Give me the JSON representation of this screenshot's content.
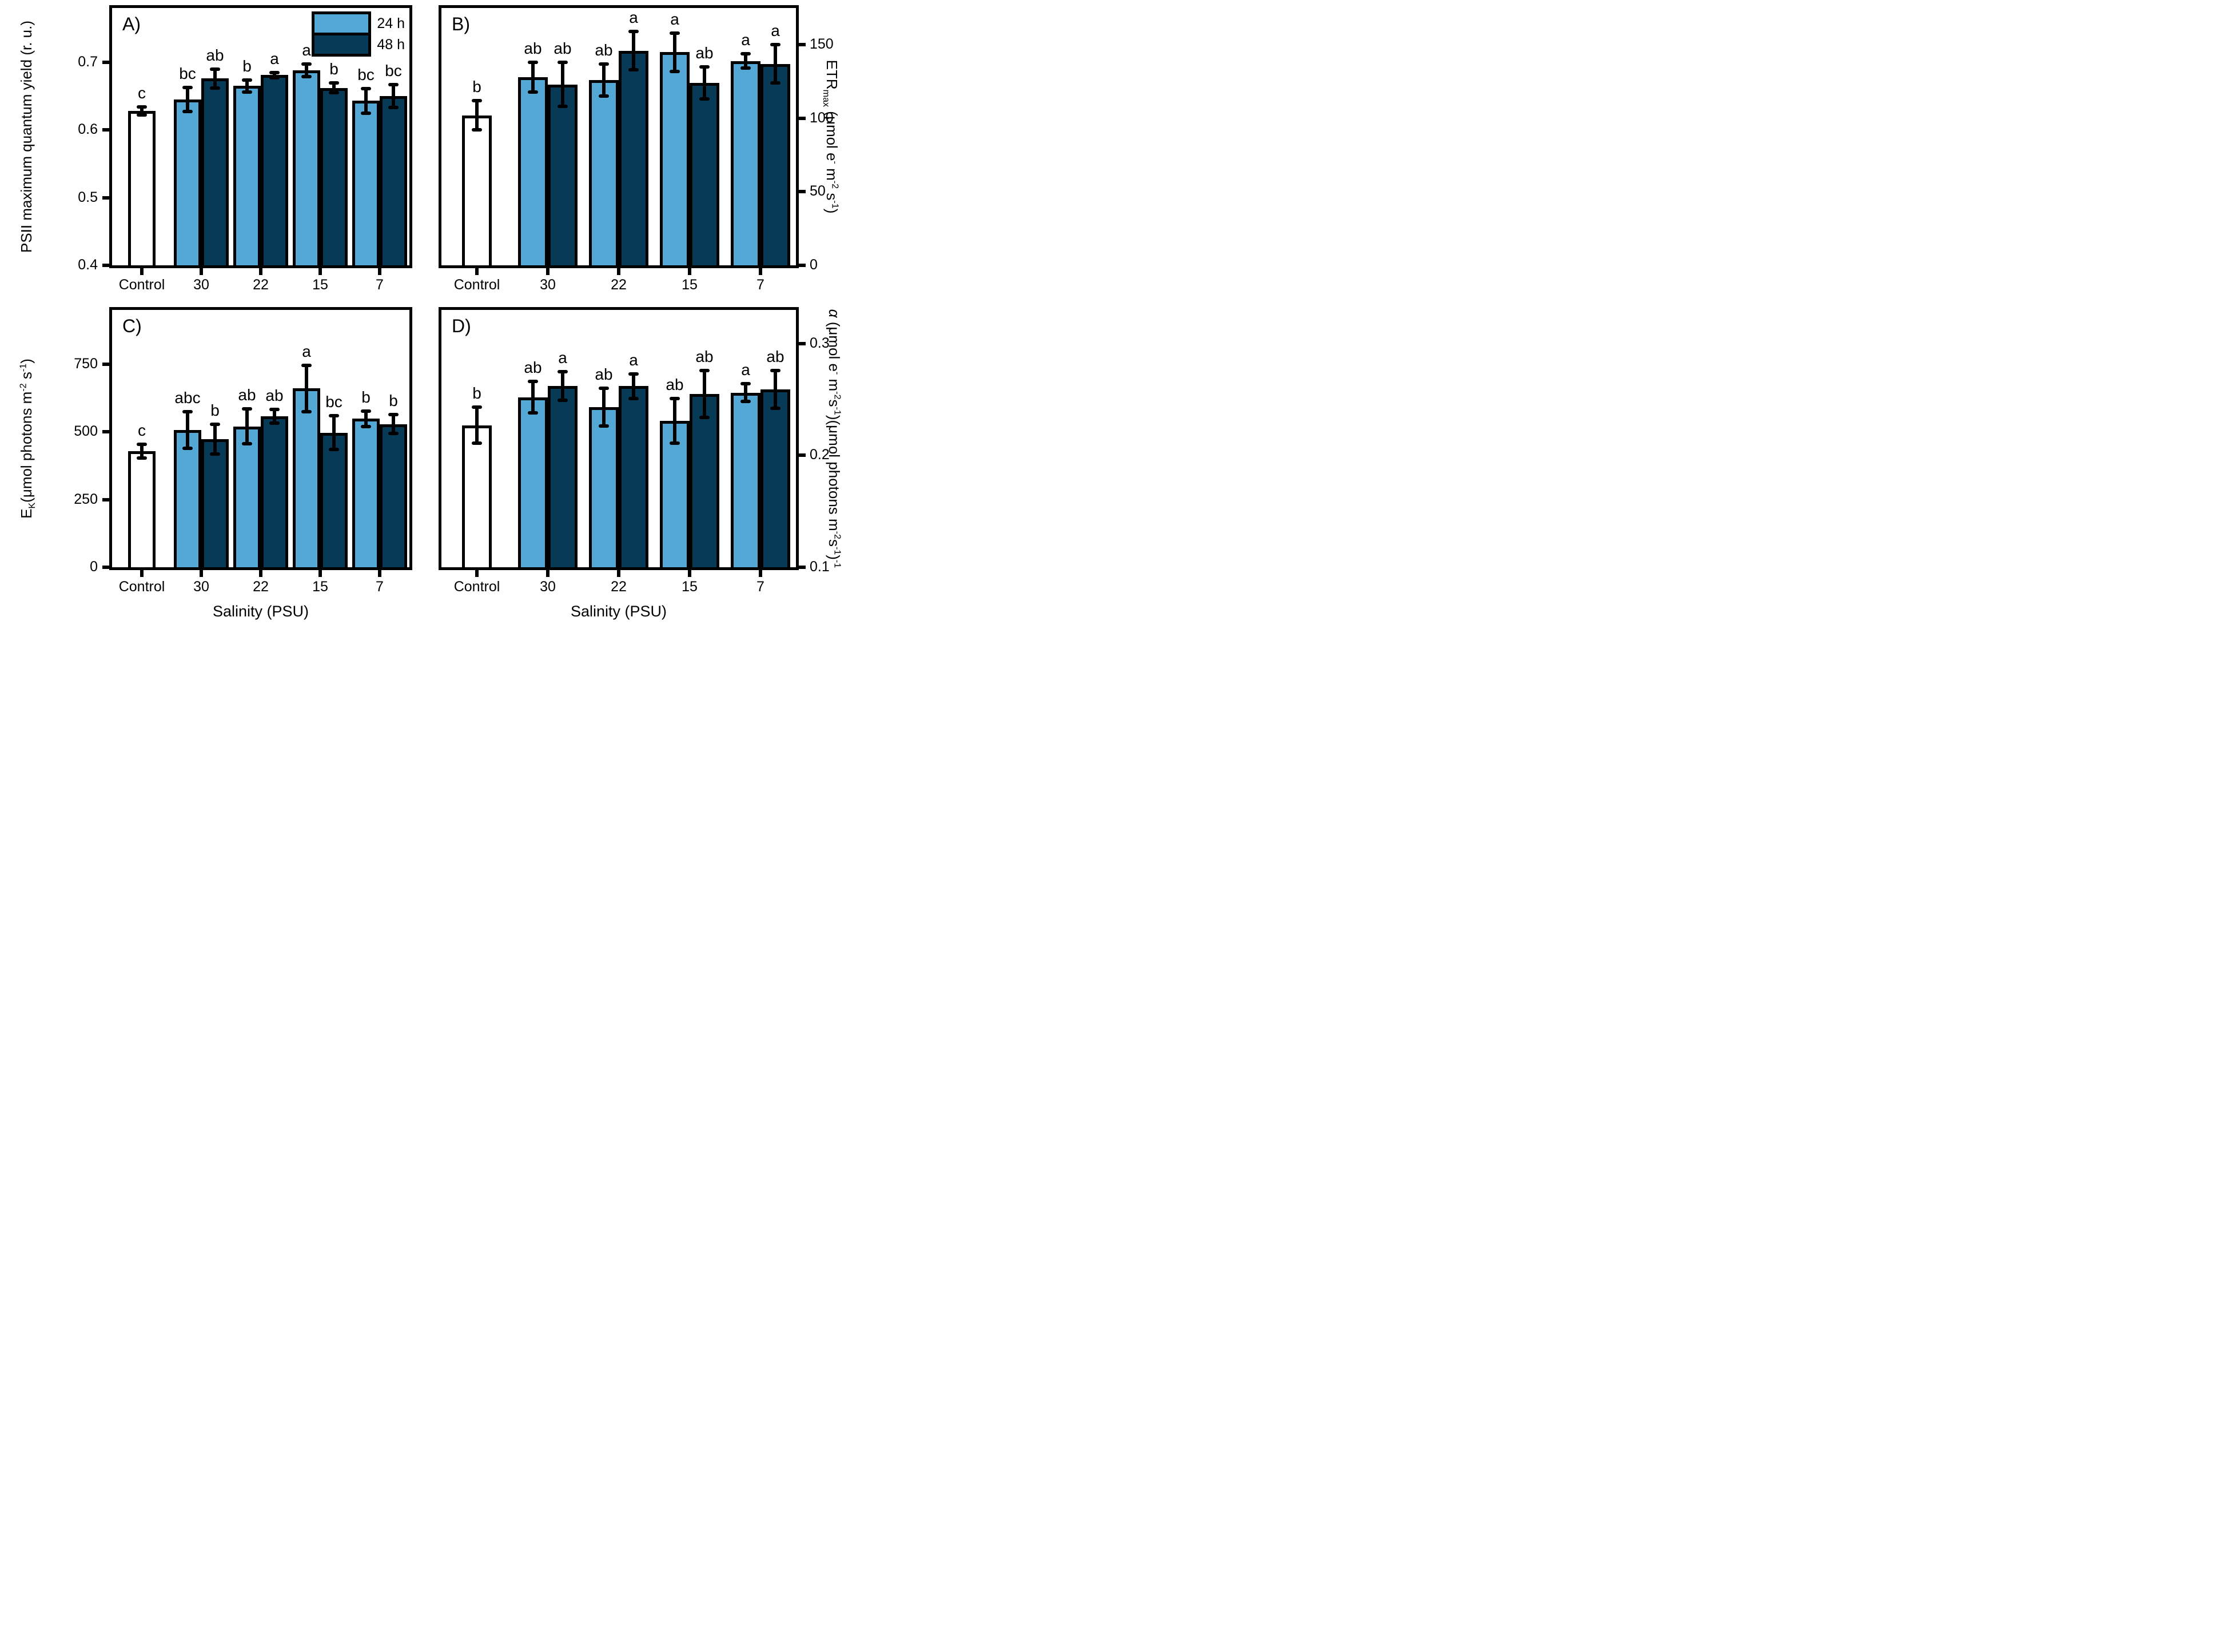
{
  "figure_title": "",
  "colors": {
    "series_24h": "#54a8d6",
    "series_48h": "#063a57",
    "control_fill": "#ffffff",
    "outline": "#000000",
    "background": "#ffffff"
  },
  "legend": {
    "items": [
      {
        "label": "24 h",
        "fill_key": "series_24h"
      },
      {
        "label": "48 h",
        "fill_key": "series_48h"
      }
    ]
  },
  "xaxis_title": "Salinity (PSU)",
  "chart_data": {
    "type": "bar",
    "categories": [
      "Control",
      "30",
      "22",
      "15",
      "7"
    ],
    "series_names": [
      "Control",
      "24 h",
      "48 h"
    ],
    "panels": [
      {
        "id": "A",
        "corner_label": "A)",
        "side": "left",
        "ylabel_text": "PSII maximum quantum yield (r. u.)",
        "ylabel_segments": [
          {
            "t": "PSII maximum quantum yield (r. u.)"
          }
        ],
        "ylim": [
          0.4,
          0.78
        ],
        "yticks": [
          {
            "v": 0.4,
            "label": "0.4"
          },
          {
            "v": 0.5,
            "label": "0.5"
          },
          {
            "v": 0.6,
            "label": "0.6"
          },
          {
            "v": 0.7,
            "label": "0.7"
          }
        ],
        "has_legend": true,
        "xlabel": "",
        "groups": [
          {
            "category": "Control",
            "bars": [
              {
                "series": "Control",
                "value": 0.628,
                "err": 0.006,
                "letter": "c",
                "fill_key": "control_fill"
              }
            ]
          },
          {
            "category": "30",
            "bars": [
              {
                "series": "24 h",
                "value": 0.645,
                "err": 0.018,
                "letter": "bc",
                "fill_key": "series_24h"
              },
              {
                "series": "48 h",
                "value": 0.676,
                "err": 0.014,
                "letter": "ab",
                "fill_key": "series_48h"
              }
            ]
          },
          {
            "category": "22",
            "bars": [
              {
                "series": "24 h",
                "value": 0.665,
                "err": 0.009,
                "letter": "b",
                "fill_key": "series_24h"
              },
              {
                "series": "48 h",
                "value": 0.681,
                "err": 0.004,
                "letter": "a",
                "fill_key": "series_48h"
              }
            ]
          },
          {
            "category": "15",
            "bars": [
              {
                "series": "24 h",
                "value": 0.688,
                "err": 0.009,
                "letter": "a",
                "fill_key": "series_24h"
              },
              {
                "series": "48 h",
                "value": 0.662,
                "err": 0.007,
                "letter": "b",
                "fill_key": "series_48h"
              }
            ]
          },
          {
            "category": "7",
            "bars": [
              {
                "series": "24 h",
                "value": 0.643,
                "err": 0.018,
                "letter": "bc",
                "fill_key": "series_24h"
              },
              {
                "series": "48 h",
                "value": 0.65,
                "err": 0.017,
                "letter": "bc",
                "fill_key": "series_48h"
              }
            ]
          }
        ]
      },
      {
        "id": "B",
        "corner_label": "B)",
        "side": "right",
        "ylabel_text": "ETRmax (μmol e- m-2 s-1)",
        "ylabel_segments": [
          {
            "t": "ETR"
          },
          {
            "t": "max",
            "sub": true
          },
          {
            "t": " (μmol e"
          },
          {
            "t": "-",
            "sup": true
          },
          {
            "t": " m"
          },
          {
            "t": "-2",
            "sup": true
          },
          {
            "t": " s"
          },
          {
            "t": "-1",
            "sup": true
          },
          {
            "t": ")"
          }
        ],
        "ylim": [
          0,
          175
        ],
        "yticks": [
          {
            "v": 0,
            "label": "0"
          },
          {
            "v": 50,
            "label": "50"
          },
          {
            "v": 100,
            "label": "100"
          },
          {
            "v": 150,
            "label": "150"
          }
        ],
        "has_legend": false,
        "xlabel": "",
        "groups": [
          {
            "category": "Control",
            "bars": [
              {
                "series": "Control",
                "value": 102,
                "err": 10,
                "letter": "b",
                "fill_key": "control_fill"
              }
            ]
          },
          {
            "category": "30",
            "bars": [
              {
                "series": "24 h",
                "value": 128,
                "err": 10,
                "letter": "ab",
                "fill_key": "series_24h"
              },
              {
                "series": "48 h",
                "value": 123,
                "err": 15,
                "letter": "ab",
                "fill_key": "series_48h"
              }
            ]
          },
          {
            "category": "22",
            "bars": [
              {
                "series": "24 h",
                "value": 126,
                "err": 11,
                "letter": "ab",
                "fill_key": "series_24h"
              },
              {
                "series": "48 h",
                "value": 146,
                "err": 13,
                "letter": "a",
                "fill_key": "series_48h"
              }
            ]
          },
          {
            "category": "15",
            "bars": [
              {
                "series": "24 h",
                "value": 145,
                "err": 13,
                "letter": "a",
                "fill_key": "series_24h"
              },
              {
                "series": "48 h",
                "value": 124,
                "err": 11,
                "letter": "ab",
                "fill_key": "series_48h"
              }
            ]
          },
          {
            "category": "7",
            "bars": [
              {
                "series": "24 h",
                "value": 139,
                "err": 5,
                "letter": "a",
                "fill_key": "series_24h"
              },
              {
                "series": "48 h",
                "value": 137,
                "err": 13,
                "letter": "a",
                "fill_key": "series_48h"
              }
            ]
          }
        ]
      },
      {
        "id": "C",
        "corner_label": "C)",
        "side": "left",
        "ylabel_text": "EK(μmol photons m-2 s-1)",
        "ylabel_segments": [
          {
            "t": "E"
          },
          {
            "t": "K",
            "sub": true
          },
          {
            "t": "(μmol photons m"
          },
          {
            "t": "-2",
            "sup": true
          },
          {
            "t": " s"
          },
          {
            "t": "-1",
            "sup": true
          },
          {
            "t": ")"
          }
        ],
        "ylim": [
          0,
          950
        ],
        "yticks": [
          {
            "v": 0,
            "label": "0"
          },
          {
            "v": 250,
            "label": "250"
          },
          {
            "v": 500,
            "label": "500"
          },
          {
            "v": 750,
            "label": "750"
          }
        ],
        "has_legend": false,
        "xlabel": "Salinity (PSU)",
        "groups": [
          {
            "category": "Control",
            "bars": [
              {
                "series": "Control",
                "value": 428,
                "err": 25,
                "letter": "c",
                "fill_key": "control_fill"
              }
            ]
          },
          {
            "category": "30",
            "bars": [
              {
                "series": "24 h",
                "value": 507,
                "err": 68,
                "letter": "abc",
                "fill_key": "series_24h"
              },
              {
                "series": "48 h",
                "value": 472,
                "err": 55,
                "letter": "b",
                "fill_key": "series_48h"
              }
            ]
          },
          {
            "category": "22",
            "bars": [
              {
                "series": "24 h",
                "value": 520,
                "err": 65,
                "letter": "ab",
                "fill_key": "series_24h"
              },
              {
                "series": "48 h",
                "value": 557,
                "err": 25,
                "letter": "ab",
                "fill_key": "series_48h"
              }
            ]
          },
          {
            "category": "15",
            "bars": [
              {
                "series": "24 h",
                "value": 660,
                "err": 85,
                "letter": "a",
                "fill_key": "series_24h"
              },
              {
                "series": "48 h",
                "value": 497,
                "err": 62,
                "letter": "bc",
                "fill_key": "series_48h"
              }
            ]
          },
          {
            "category": "7",
            "bars": [
              {
                "series": "24 h",
                "value": 548,
                "err": 28,
                "letter": "b",
                "fill_key": "series_24h"
              },
              {
                "series": "48 h",
                "value": 528,
                "err": 35,
                "letter": "b",
                "fill_key": "series_48h"
              }
            ]
          }
        ]
      },
      {
        "id": "D",
        "corner_label": "D)",
        "side": "right",
        "ylabel_text": "α (μmol e- m-2s-1)(μmol photons m-2s-1)-1",
        "ylabel_segments": [
          {
            "t": "α ",
            "italic": true
          },
          {
            "t": "(μmol e"
          },
          {
            "t": "-",
            "sup": true
          },
          {
            "t": " m"
          },
          {
            "t": "-2",
            "sup": true
          },
          {
            "t": "s"
          },
          {
            "t": "-1",
            "sup": true
          },
          {
            "t": ")(μmol photons m"
          },
          {
            "t": "-2",
            "sup": true
          },
          {
            "t": "s"
          },
          {
            "t": "-1",
            "sup": true
          },
          {
            "t": ")"
          },
          {
            "t": "-1",
            "sup": true
          }
        ],
        "ylim": [
          0.1,
          0.33
        ],
        "yticks": [
          {
            "v": 0.1,
            "label": "0.1"
          },
          {
            "v": 0.2,
            "label": "0.2"
          },
          {
            "v": 0.3,
            "label": "0.3"
          }
        ],
        "has_legend": false,
        "xlabel": "Salinity (PSU)",
        "groups": [
          {
            "category": "Control",
            "bars": [
              {
                "series": "Control",
                "value": 0.227,
                "err": 0.016,
                "letter": "b",
                "fill_key": "control_fill"
              }
            ]
          },
          {
            "category": "30",
            "bars": [
              {
                "series": "24 h",
                "value": 0.252,
                "err": 0.014,
                "letter": "ab",
                "fill_key": "series_24h"
              },
              {
                "series": "48 h",
                "value": 0.262,
                "err": 0.013,
                "letter": "a",
                "fill_key": "series_48h"
              }
            ]
          },
          {
            "category": "22",
            "bars": [
              {
                "series": "24 h",
                "value": 0.243,
                "err": 0.017,
                "letter": "ab",
                "fill_key": "series_24h"
              },
              {
                "series": "48 h",
                "value": 0.262,
                "err": 0.011,
                "letter": "a",
                "fill_key": "series_48h"
              }
            ]
          },
          {
            "category": "15",
            "bars": [
              {
                "series": "24 h",
                "value": 0.231,
                "err": 0.02,
                "letter": "ab",
                "fill_key": "series_24h"
              },
              {
                "series": "48 h",
                "value": 0.255,
                "err": 0.021,
                "letter": "ab",
                "fill_key": "series_48h"
              }
            ]
          },
          {
            "category": "7",
            "bars": [
              {
                "series": "24 h",
                "value": 0.256,
                "err": 0.008,
                "letter": "a",
                "fill_key": "series_24h"
              },
              {
                "series": "48 h",
                "value": 0.259,
                "err": 0.017,
                "letter": "ab",
                "fill_key": "series_48h"
              }
            ]
          }
        ]
      }
    ]
  }
}
